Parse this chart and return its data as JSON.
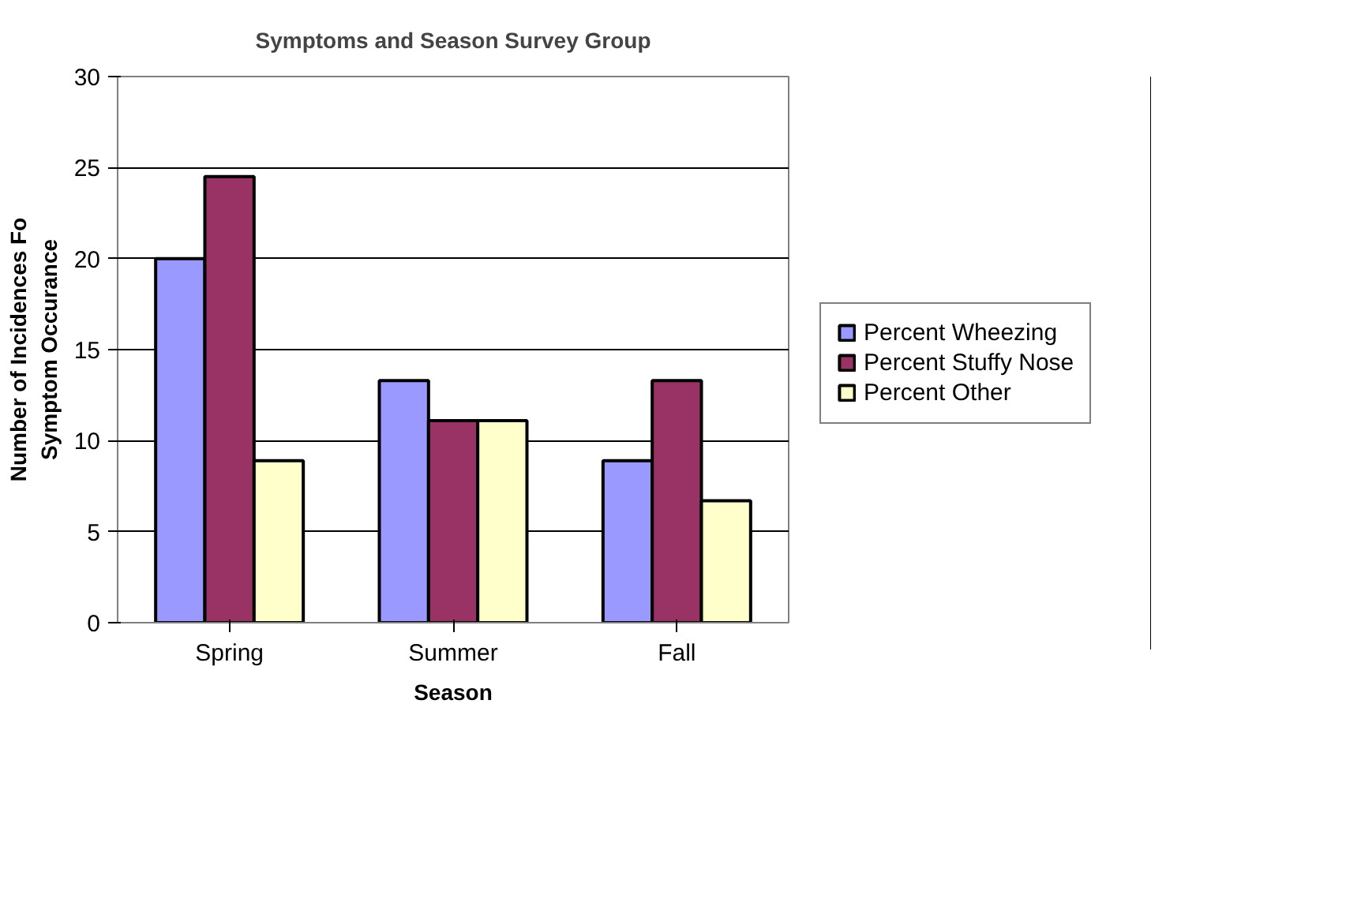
{
  "chart_data": {
    "type": "bar",
    "title": "Symptoms and Season Survey Group",
    "xlabel": "Season",
    "ylabel": "Number of Incidences Fo\nSymptom Occurance",
    "categories": [
      "Spring",
      "Summer",
      "Fall"
    ],
    "series": [
      {
        "name": "Percent Wheezing",
        "color": "#9999ff",
        "values": [
          20.0,
          13.3,
          8.9
        ]
      },
      {
        "name": "Percent Stuffy Nose",
        "color": "#993366",
        "values": [
          24.5,
          11.1,
          13.3
        ]
      },
      {
        "name": "Percent Other",
        "color": "#ffffcc",
        "values": [
          8.9,
          11.1,
          6.7
        ]
      }
    ],
    "ylim": [
      0,
      30
    ],
    "yticks": [
      0,
      5,
      10,
      15,
      20,
      25,
      30
    ],
    "grid": "y",
    "legend": "right"
  }
}
